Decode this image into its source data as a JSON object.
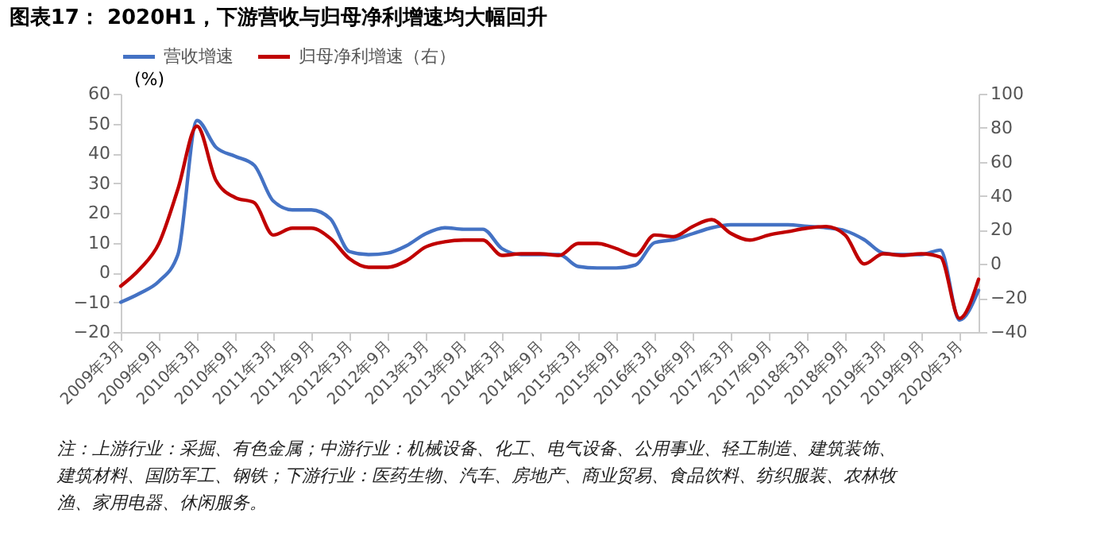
{
  "chart_data": {
    "type": "line",
    "title": "图表17：    2020H1，下游营收与归母净利增速均大幅回升",
    "ylabel": "(%)",
    "categories": [
      "2009年3月",
      null,
      "2009年9月",
      null,
      "2010年3月",
      null,
      "2010年9月",
      null,
      "2011年3月",
      null,
      "2011年9月",
      null,
      "2012年3月",
      null,
      "2012年9月",
      null,
      "2013年3月",
      null,
      "2013年9月",
      null,
      "2014年3月",
      null,
      "2014年9月",
      null,
      "2015年3月",
      null,
      "2015年9月",
      null,
      "2016年3月",
      null,
      "2016年9月",
      null,
      "2017年3月",
      null,
      "2017年9月",
      null,
      "2018年3月",
      null,
      "2018年9月",
      null,
      "2019年3月",
      null,
      "2019年9月",
      null,
      "2020年3月",
      null
    ],
    "series": [
      {
        "name": "营收增速",
        "color": "#4472c4",
        "values": [
          -10,
          -7,
          -3,
          6,
          51,
          42,
          39,
          36,
          24,
          21,
          21,
          18,
          7,
          6,
          6.5,
          9,
          13,
          15,
          14.5,
          14.5,
          8,
          6,
          6,
          6,
          2,
          1.5,
          1.5,
          2.5,
          10,
          11,
          13,
          15,
          16,
          16,
          16,
          16,
          15.5,
          15,
          14,
          11,
          6.5,
          6,
          6,
          7.5,
          -16,
          -6
        ]
      },
      {
        "name": "归母净利增速（右）",
        "color": "#c00000",
        "axis": "y2",
        "values": [
          -13,
          -3,
          12,
          44,
          81,
          49,
          39,
          36,
          17,
          21,
          21,
          15,
          3,
          -2,
          -2,
          2,
          10,
          13,
          14,
          14,
          5,
          6,
          6,
          5,
          12,
          12,
          9,
          5,
          17,
          16,
          22,
          26,
          18,
          14,
          17,
          19,
          21,
          22,
          17,
          0,
          6,
          5,
          6,
          4,
          -32,
          -9
        ]
      }
    ],
    "ylim": [
      -20,
      60
    ],
    "yticks": [
      -20,
      -10,
      0,
      10,
      20,
      30,
      40,
      50,
      60
    ],
    "y2lim": [
      -40,
      100
    ],
    "y2ticks": [
      -40,
      -20,
      0,
      20,
      40,
      60,
      80,
      100
    ],
    "grid": false,
    "legend": "top",
    "annotations": [
      "注：上游行业：采掘、有色金属；中游行业：机械设备、化工、电气设备、公用事业、轻工制造、建筑装饰、",
      "建筑材料、国防军工、钢铁；下游行业：医药生物、汽车、房地产、商业贸易、食品饮料、纺织服装、农林牧",
      "渔、家用电器、休闲服务。"
    ]
  }
}
